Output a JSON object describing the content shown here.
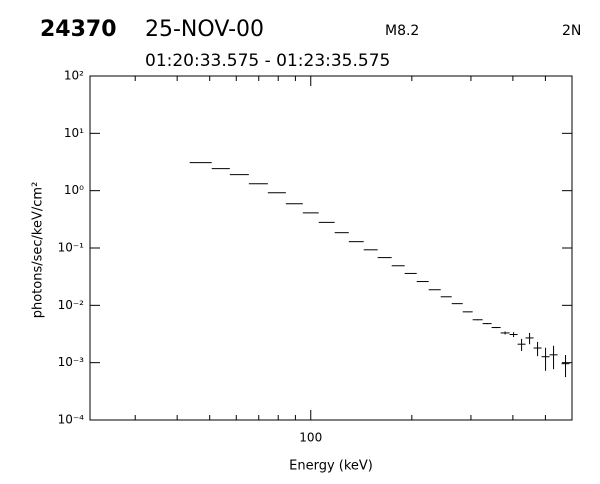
{
  "header": {
    "id": "24370",
    "date": "25-NOV-00",
    "class": "M8.2",
    "importance": "2N",
    "time_range": "01:20:33.575 - 01:23:35.575"
  },
  "chart_data": {
    "type": "spectrum",
    "x_label": "Energy (keV)",
    "y_label": "photons/sec/keV/cm²",
    "xscale": "log",
    "yscale": "log",
    "xlim": [
      22,
      600
    ],
    "ylim": [
      0.0001,
      100
    ],
    "xticks": [
      100
    ],
    "xminorticks": [
      30,
      40,
      50,
      60,
      70,
      80,
      90,
      200,
      300,
      400,
      500
    ],
    "yticks": [
      {
        "value": 0.0001,
        "label": "10⁻⁴"
      },
      {
        "value": 0.001,
        "label": "10⁻³"
      },
      {
        "value": 0.01,
        "label": "10⁻²"
      },
      {
        "value": 0.1,
        "label": "10⁻¹"
      },
      {
        "value": 1,
        "label": "10⁰"
      },
      {
        "value": 10,
        "label": "10¹"
      },
      {
        "value": 100,
        "label": "10²"
      }
    ],
    "color": "#000000",
    "x_low": [
      43.6,
      50.7,
      57.4,
      65.4,
      74.5,
      84.3,
      94.7,
      105.6,
      117.8,
      129.8,
      143.8,
      158.2,
      174.2,
      190.4,
      206.8,
      224.5,
      243.8,
      262.9,
      283.5,
      303.5,
      325,
      345.7,
      367.7,
      391.1,
      413.1,
      436.4,
      461,
      486.9,
      514.4,
      558.5
    ],
    "x_high": [
      50.7,
      57.4,
      65.4,
      74.5,
      84.3,
      94.7,
      105.6,
      117.8,
      129.8,
      143.8,
      158.2,
      174.2,
      190.4,
      206.8,
      224.5,
      243.8,
      262.9,
      283.5,
      303.5,
      325,
      345.7,
      367.7,
      391.1,
      413.1,
      436.4,
      461,
      486.9,
      514.4,
      543.4,
      589.9
    ],
    "values": [
      3.08,
      2.42,
      1.9,
      1.32,
      0.92,
      0.59,
      0.41,
      0.28,
      0.185,
      0.129,
      0.093,
      0.068,
      0.049,
      0.036,
      0.026,
      0.0187,
      0.0141,
      0.0107,
      0.0077,
      0.0056,
      0.0048,
      0.0041,
      0.0033,
      0.0031,
      0.0021,
      0.0027,
      0.0018,
      0.00127,
      0.00137,
      0.00096
    ],
    "errors": [
      0,
      0,
      0,
      0,
      0,
      0,
      0,
      0,
      0,
      0,
      0,
      0,
      0,
      0,
      0,
      0,
      0,
      0.0001,
      0.0001,
      0.0001,
      0.0001,
      0.0001,
      0.0002,
      0.0003,
      0.0005,
      0.0006,
      0.0005,
      0.00055,
      0.0006,
      0.0004
    ]
  }
}
